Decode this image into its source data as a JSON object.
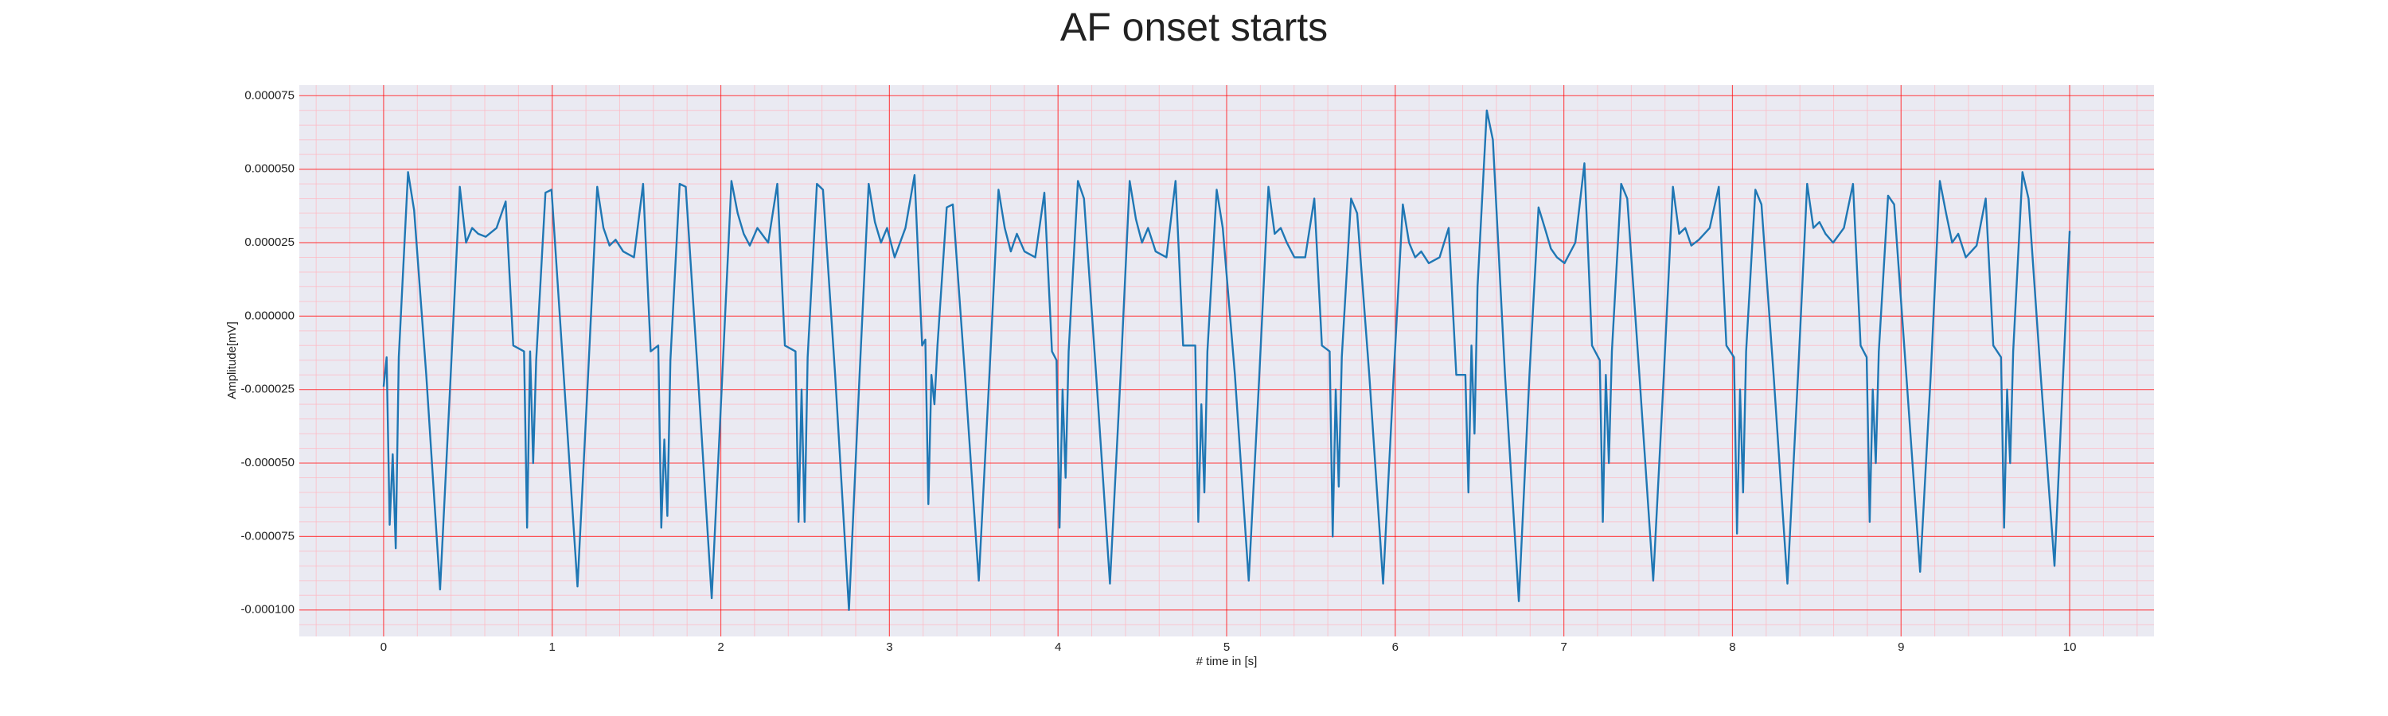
{
  "chart_data": {
    "type": "line",
    "title": "AF onset starts",
    "xlabel": "# time in [s]",
    "ylabel": "Amplitude[mV]",
    "xlim": [
      -0.5,
      10.5
    ],
    "ylim": [
      -0.000109,
      7.86e-05
    ],
    "xticks": [
      0,
      1,
      2,
      3,
      4,
      5,
      6,
      7,
      8,
      9,
      10
    ],
    "yticks": [
      {
        "value": -0.0001,
        "label": "-0.000100"
      },
      {
        "value": -7.5e-05,
        "label": "-0.000075"
      },
      {
        "value": -5e-05,
        "label": "-0.000050"
      },
      {
        "value": -2.5e-05,
        "label": "-0.000025"
      },
      {
        "value": 0,
        "label": "0.000000"
      },
      {
        "value": 2.5e-05,
        "label": "0.000025"
      },
      {
        "value": 5e-05,
        "label": "0.000050"
      },
      {
        "value": 7.5e-05,
        "label": "0.000075"
      }
    ],
    "grid": true,
    "grid_color": "#ff0000",
    "minor_grid": {
      "color": "#ffb6c1",
      "per_major": 5
    },
    "background": "#eaeaf2",
    "series": [
      {
        "color": "#1f77b4",
        "x": [
          0,
          0.018,
          0.036,
          0.054,
          0.072,
          0.09,
          0.145,
          0.181,
          0.253,
          0.335,
          0.398,
          0.452,
          0.489,
          0.525,
          0.561,
          0.606,
          0.67,
          0.724,
          0.769,
          0.833,
          0.851,
          0.869,
          0.887,
          0.905,
          0.96,
          0.996,
          1.068,
          1.15,
          1.213,
          1.267,
          1.304,
          1.34,
          1.376,
          1.421,
          1.485,
          1.539,
          1.584,
          1.629,
          1.647,
          1.665,
          1.683,
          1.701,
          1.756,
          1.792,
          1.864,
          1.946,
          2.009,
          2.063,
          2.1,
          2.136,
          2.172,
          2.217,
          2.281,
          2.335,
          2.38,
          2.443,
          2.461,
          2.479,
          2.497,
          2.515,
          2.57,
          2.606,
          2.678,
          2.76,
          2.823,
          2.877,
          2.914,
          2.95,
          2.986,
          3.031,
          3.095,
          3.149,
          3.194,
          3.213,
          3.231,
          3.249,
          3.267,
          3.285,
          3.34,
          3.376,
          3.448,
          3.53,
          3.593,
          3.647,
          3.684,
          3.72,
          3.756,
          3.801,
          3.865,
          3.919,
          3.964,
          3.991,
          4.009,
          4.027,
          4.045,
          4.063,
          4.118,
          4.154,
          4.226,
          4.308,
          4.371,
          4.425,
          4.462,
          4.498,
          4.534,
          4.579,
          4.643,
          4.697,
          4.742,
          4.814,
          4.832,
          4.85,
          4.868,
          4.886,
          4.941,
          4.977,
          5.049,
          5.131,
          5.194,
          5.248,
          5.285,
          5.321,
          5.357,
          5.402,
          5.466,
          5.52,
          5.565,
          5.611,
          5.629,
          5.647,
          5.665,
          5.683,
          5.738,
          5.774,
          5.846,
          5.928,
          5.991,
          6.045,
          6.082,
          6.118,
          6.154,
          6.199,
          6.263,
          6.317,
          6.362,
          6.416,
          6.434,
          6.452,
          6.47,
          6.488,
          6.543,
          6.579,
          6.651,
          6.733,
          6.796,
          6.85,
          6.887,
          6.923,
          6.959,
          7.004,
          7.068,
          7.122,
          7.167,
          7.213,
          7.231,
          7.249,
          7.267,
          7.285,
          7.34,
          7.376,
          7.448,
          7.53,
          7.593,
          7.647,
          7.684,
          7.72,
          7.756,
          7.801,
          7.865,
          7.919,
          7.964,
          8.009,
          8.027,
          8.045,
          8.063,
          8.081,
          8.136,
          8.172,
          8.244,
          8.326,
          8.389,
          8.443,
          8.48,
          8.516,
          8.552,
          8.597,
          8.661,
          8.715,
          8.76,
          8.796,
          8.814,
          8.832,
          8.85,
          8.868,
          8.923,
          8.959,
          9.031,
          9.113,
          9.176,
          9.23,
          9.267,
          9.303,
          9.339,
          9.384,
          9.448,
          9.502,
          9.547,
          9.593,
          9.611,
          9.629,
          9.647,
          9.665,
          9.72,
          9.756,
          9.828,
          9.91,
          10.0
        ],
        "values": [
          -2.4e-05,
          -1.4e-05,
          -7.1e-05,
          -4.7e-05,
          -7.9e-05,
          -1.4e-05,
          4.9e-05,
          3.6e-05,
          -2e-05,
          -9.3e-05,
          -2e-05,
          4.4e-05,
          2.5e-05,
          3e-05,
          2.8e-05,
          2.7e-05,
          3e-05,
          3.9e-05,
          -1e-05,
          -1.2e-05,
          -7.2e-05,
          -1.2e-05,
          -5e-05,
          -1.5e-05,
          4.2e-05,
          4.3e-05,
          -2e-05,
          -9.2e-05,
          -2e-05,
          4.4e-05,
          3e-05,
          2.4e-05,
          2.6e-05,
          2.2e-05,
          2e-05,
          4.5e-05,
          -1.2e-05,
          -1e-05,
          -7.2e-05,
          -4.2e-05,
          -6.8e-05,
          -1.5e-05,
          4.5e-05,
          4.4e-05,
          -2e-05,
          -9.6e-05,
          -2e-05,
          4.6e-05,
          3.5e-05,
          2.8e-05,
          2.4e-05,
          3e-05,
          2.5e-05,
          4.5e-05,
          -1e-05,
          -1.2e-05,
          -7e-05,
          -2.5e-05,
          -7e-05,
          -1.4e-05,
          4.5e-05,
          4.3e-05,
          -2e-05,
          -0.0001,
          -2e-05,
          4.5e-05,
          3.2e-05,
          2.5e-05,
          3e-05,
          2e-05,
          3e-05,
          4.8e-05,
          -1e-05,
          -8e-06,
          -6.4e-05,
          -2e-05,
          -3e-05,
          -1e-05,
          3.7e-05,
          3.8e-05,
          -2e-05,
          -9e-05,
          -2e-05,
          4.3e-05,
          3e-05,
          2.2e-05,
          2.8e-05,
          2.2e-05,
          2e-05,
          4.2e-05,
          -1.2e-05,
          -1.5e-05,
          -7.2e-05,
          -2.5e-05,
          -5.5e-05,
          -1.2e-05,
          4.6e-05,
          4e-05,
          -2e-05,
          -9.1e-05,
          -2e-05,
          4.6e-05,
          3.3e-05,
          2.5e-05,
          3e-05,
          2.2e-05,
          2e-05,
          4.6e-05,
          -1e-05,
          -1e-05,
          -7e-05,
          -3e-05,
          -6e-05,
          -1.2e-05,
          4.3e-05,
          3e-05,
          -2e-05,
          -9e-05,
          -2e-05,
          4.4e-05,
          2.8e-05,
          3e-05,
          2.5e-05,
          2e-05,
          2e-05,
          4e-05,
          -1e-05,
          -1.2e-05,
          -7.5e-05,
          -2.5e-05,
          -5.8e-05,
          -1.4e-05,
          4e-05,
          3.5e-05,
          -2e-05,
          -9.1e-05,
          -2e-05,
          3.8e-05,
          2.5e-05,
          2e-05,
          2.2e-05,
          1.8e-05,
          2e-05,
          3e-05,
          -2e-05,
          -2e-05,
          -6e-05,
          -1e-05,
          -4e-05,
          1e-05,
          7e-05,
          6e-05,
          -2e-05,
          -9.7e-05,
          -2e-05,
          3.7e-05,
          3e-05,
          2.3e-05,
          2e-05,
          1.8e-05,
          2.5e-05,
          5.2e-05,
          -1e-05,
          -1.5e-05,
          -7e-05,
          -2e-05,
          -5e-05,
          -1.2e-05,
          4.5e-05,
          4e-05,
          -2e-05,
          -9e-05,
          -2e-05,
          4.4e-05,
          2.8e-05,
          3e-05,
          2.4e-05,
          2.6e-05,
          3e-05,
          4.4e-05,
          -1e-05,
          -1.4e-05,
          -7.4e-05,
          -2.5e-05,
          -6e-05,
          -1.2e-05,
          4.3e-05,
          3.8e-05,
          -2e-05,
          -9.1e-05,
          -2e-05,
          4.5e-05,
          3e-05,
          3.2e-05,
          2.8e-05,
          2.5e-05,
          3e-05,
          4.5e-05,
          -1e-05,
          -1.4e-05,
          -7e-05,
          -2.5e-05,
          -5e-05,
          -1.2e-05,
          4.1e-05,
          3.8e-05,
          -2e-05,
          -8.7e-05,
          -2e-05,
          4.6e-05,
          3.5e-05,
          2.5e-05,
          2.8e-05,
          2e-05,
          2.4e-05,
          4e-05,
          -1e-05,
          -1.4e-05,
          -7.2e-05,
          -2.5e-05,
          -5e-05,
          -1.2e-05,
          4.9e-05,
          4e-05,
          -2e-05,
          -8.5e-05,
          2.9e-05
        ]
      }
    ]
  }
}
